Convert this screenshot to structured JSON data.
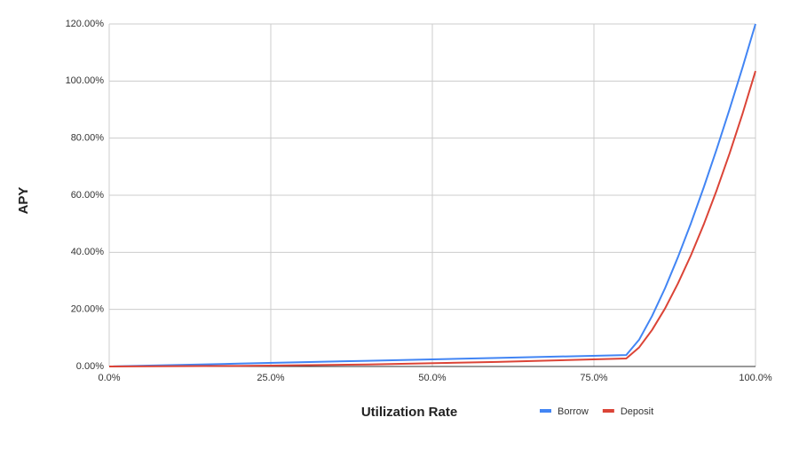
{
  "chart_data": {
    "type": "line",
    "x_label": "Utilization Rate",
    "y_label": "APY",
    "x": [
      0,
      20,
      40,
      60,
      80,
      82,
      84,
      86,
      88,
      90,
      92,
      94,
      96,
      98,
      100
    ],
    "series": [
      {
        "name": "Borrow",
        "color": "#4285f4",
        "values": [
          0,
          1,
          2,
          3,
          4,
          9.4,
          17.7,
          27.4,
          38.3,
          50.1,
          62.8,
          76.2,
          90.2,
          104.8,
          120
        ]
      },
      {
        "name": "Deposit",
        "color": "#db4437",
        "values": [
          0,
          0.2,
          0.7,
          1.6,
          2.8,
          6.7,
          12.8,
          20.3,
          29.1,
          38.9,
          49.8,
          61.8,
          74.7,
          88.6,
          103.5
        ]
      }
    ],
    "xlim": [
      0,
      100
    ],
    "xticks": [
      {
        "value": 0,
        "label": "0.0%"
      },
      {
        "value": 25,
        "label": "25.0%"
      },
      {
        "value": 50,
        "label": "50.0%"
      },
      {
        "value": 75,
        "label": "75.0%"
      },
      {
        "value": 100,
        "label": "100.0%"
      }
    ],
    "ylim": [
      0,
      120
    ],
    "yticks": [
      {
        "value": 0,
        "label": "0.00%"
      },
      {
        "value": 20,
        "label": "20.00%"
      },
      {
        "value": 40,
        "label": "40.00%"
      },
      {
        "value": 60,
        "label": "60.00%"
      },
      {
        "value": 80,
        "label": "80.00%"
      },
      {
        "value": 100,
        "label": "100.00%"
      },
      {
        "value": 120,
        "label": "120.00%"
      }
    ],
    "grid": true,
    "legend": "bottom"
  }
}
